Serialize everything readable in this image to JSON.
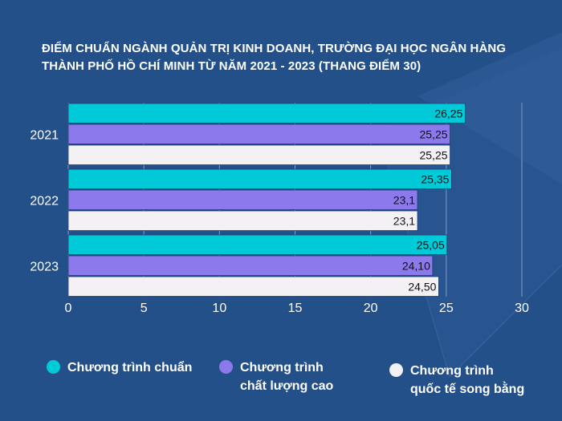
{
  "title": {
    "line1": "ĐIỂM CHUẨN NGÀNH QUẢN TRỊ KINH DOANH, TRƯỜNG ĐẠI HỌC NGÂN HÀNG",
    "line2": "THÀNH PHỐ HỒ CHÍ MINH TỪ NĂM 2021 - 2023 (THANG ĐIỂM 30)"
  },
  "colors": {
    "background": "#24508a",
    "series": [
      "#00c9d8",
      "#8c79ec",
      "#f3f1f4"
    ],
    "text": "#ffffff",
    "grid": "#7f9fc7"
  },
  "chart_data": {
    "type": "bar",
    "orientation": "horizontal",
    "title": "ĐIỂM CHUẨN NGÀNH QUẢN TRỊ KINH DOANH, TRƯỜNG ĐẠI HỌC NGÂN HÀNG THÀNH PHỐ HỒ CHÍ MINH TỪ NĂM 2021 - 2023 (THANG ĐIỂM 30)",
    "categories": [
      "2021",
      "2022",
      "2023"
    ],
    "series": [
      {
        "name": "Chương trình chuẩn",
        "values": [
          26.25,
          25.35,
          25.05
        ],
        "labels": [
          "26,25",
          "25,35",
          "25,05"
        ]
      },
      {
        "name": "Chương trình\nchất lượng cao",
        "values": [
          25.25,
          23.1,
          24.1
        ],
        "labels": [
          "25,25",
          "23,1",
          "24,10"
        ]
      },
      {
        "name": "Chương trình\nquốc tế song bằng",
        "values": [
          25.25,
          23.1,
          24.5
        ],
        "labels": [
          "25,25",
          "23,1",
          "24,50"
        ]
      }
    ],
    "xlim": [
      0,
      30
    ],
    "xticks": [
      "0",
      "5",
      "10",
      "15",
      "20",
      "25",
      "30"
    ],
    "grid": true,
    "legend": "bottom"
  }
}
